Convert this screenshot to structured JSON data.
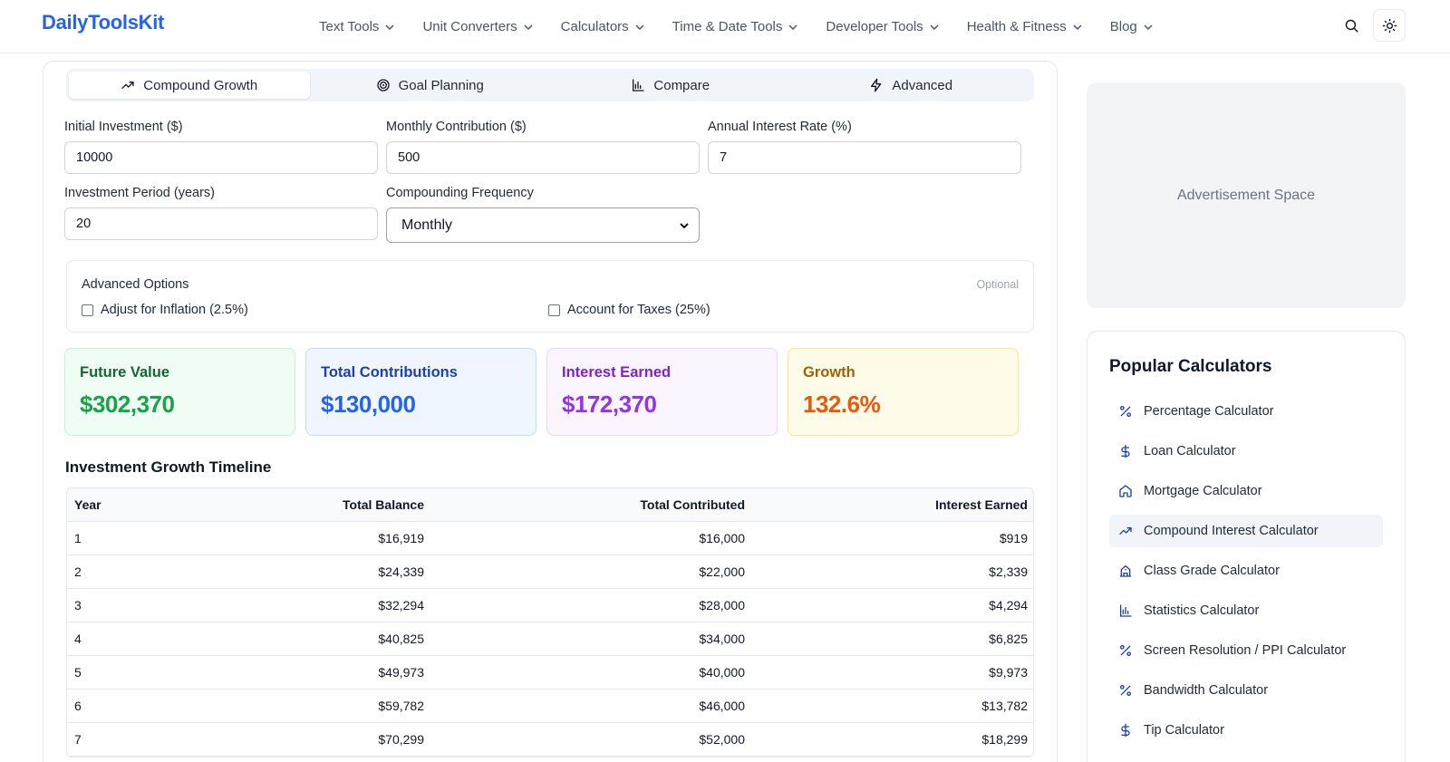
{
  "header": {
    "logo": {
      "part1": "Daily",
      "part2": "Tools",
      "part3": "Kit"
    },
    "nav": [
      "Text Tools",
      "Unit Converters",
      "Calculators",
      "Time & Date Tools",
      "Developer Tools",
      "Health & Fitness",
      "Blog"
    ],
    "search_icon": "search-icon",
    "theme_icon": "sun-icon"
  },
  "tabs": [
    {
      "label": "Compound Growth",
      "icon": "trending-up-icon",
      "active": true
    },
    {
      "label": "Goal Planning",
      "icon": "target-icon",
      "active": false
    },
    {
      "label": "Compare",
      "icon": "bar-chart-icon",
      "active": false
    },
    {
      "label": "Advanced",
      "icon": "lightning-icon",
      "active": false
    }
  ],
  "form": {
    "initial_investment": {
      "label": "Initial Investment ($)",
      "value": "10000"
    },
    "monthly_contribution": {
      "label": "Monthly Contribution ($)",
      "value": "500"
    },
    "annual_rate": {
      "label": "Annual Interest Rate (%)",
      "value": "7"
    },
    "period": {
      "label": "Investment Period (years)",
      "value": "20"
    },
    "frequency": {
      "label": "Compounding Frequency",
      "value": "Monthly"
    }
  },
  "advanced": {
    "title": "Advanced Options",
    "optional": "Optional",
    "inflation": "Adjust for Inflation (2.5%)",
    "taxes": "Account for Taxes (25%)"
  },
  "stats": [
    {
      "label": "Future Value",
      "value": "$302,370",
      "color": "#15803d",
      "bg": "#f0fdf4",
      "border": "#bbf7d0"
    },
    {
      "label": "Total Contributions",
      "value": "$130,000",
      "color": "#1d4ed8",
      "bg": "#eff6ff",
      "border": "#bfdbfe"
    },
    {
      "label": "Interest Earned",
      "value": "$172,370",
      "color": "#9333ea",
      "bg": "#faf5ff",
      "border": "#e9d5ff"
    },
    {
      "label": "Growth",
      "value": "132.6%",
      "color": "#c2410c",
      "bg": "#fefce8",
      "border": "#fde68a"
    }
  ],
  "timeline": {
    "title": "Investment Growth Timeline",
    "headers": [
      "Year",
      "Total Balance",
      "Total Contributed",
      "Interest Earned"
    ],
    "rows": [
      [
        "1",
        "$16,919",
        "$16,000",
        "$919"
      ],
      [
        "2",
        "$24,339",
        "$22,000",
        "$2,339"
      ],
      [
        "3",
        "$32,294",
        "$28,000",
        "$4,294"
      ],
      [
        "4",
        "$40,825",
        "$34,000",
        "$6,825"
      ],
      [
        "5",
        "$49,973",
        "$40,000",
        "$9,973"
      ],
      [
        "6",
        "$59,782",
        "$46,000",
        "$13,782"
      ],
      [
        "7",
        "$70,299",
        "$52,000",
        "$18,299"
      ]
    ]
  },
  "sidebar": {
    "ad_text": "Advertisement Space",
    "popular_title": "Popular Calculators",
    "items": [
      {
        "label": "Percentage Calculator",
        "icon": "percent-icon",
        "active": false
      },
      {
        "label": "Loan Calculator",
        "icon": "dollar-icon",
        "active": false
      },
      {
        "label": "Mortgage Calculator",
        "icon": "home-icon",
        "active": false
      },
      {
        "label": "Compound Interest Calculator",
        "icon": "trending-up-icon",
        "active": true
      },
      {
        "label": "Class Grade Calculator",
        "icon": "school-icon",
        "active": false
      },
      {
        "label": "Statistics Calculator",
        "icon": "bar-chart-icon",
        "active": false
      },
      {
        "label": "Screen Resolution / PPI Calculator",
        "icon": "percent-icon",
        "active": false
      },
      {
        "label": "Bandwidth Calculator",
        "icon": "percent-icon",
        "active": false
      },
      {
        "label": "Tip Calculator",
        "icon": "dollar-icon",
        "active": false
      }
    ]
  },
  "colors": {
    "brand": "#2563eb",
    "sidebar_icon": "#1e40af"
  }
}
